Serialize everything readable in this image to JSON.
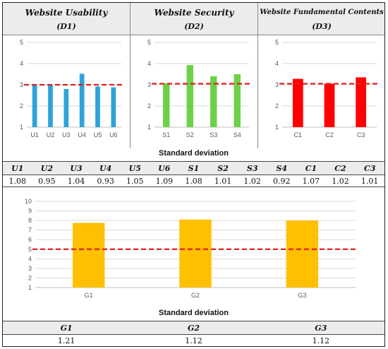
{
  "panels": [
    {
      "title": "Website Usability",
      "subtitle": "(D1)"
    },
    {
      "title": "Website Security",
      "subtitle": "(D2)"
    },
    {
      "title": "Website Fundamental Contents",
      "subtitle": "(D3)"
    }
  ],
  "chart_data": [
    {
      "type": "bar",
      "categories": [
        "U1",
        "U2",
        "U3",
        "U4",
        "U5",
        "U6"
      ],
      "values": [
        2.97,
        2.97,
        2.8,
        3.52,
        2.92,
        2.88
      ],
      "ylim": [
        1,
        5
      ],
      "yticks": [
        1,
        2,
        3,
        4,
        5
      ],
      "reference_line": 3,
      "color": "#2ea3d9",
      "grid": true
    },
    {
      "type": "bar",
      "categories": [
        "S1",
        "S2",
        "S3",
        "S4"
      ],
      "values": [
        3.07,
        3.93,
        3.4,
        3.5
      ],
      "ylim": [
        1,
        5
      ],
      "yticks": [
        1,
        2,
        3,
        4,
        5
      ],
      "reference_line": 3.05,
      "color": "#6cd146",
      "grid": true
    },
    {
      "type": "bar",
      "categories": [
        "C1",
        "C2",
        "C3"
      ],
      "values": [
        3.28,
        3.05,
        3.35
      ],
      "ylim": [
        1,
        5
      ],
      "yticks": [
        1,
        2,
        3,
        4,
        5
      ],
      "reference_line": 3.05,
      "color": "#ff0000",
      "grid": true
    },
    {
      "type": "bar",
      "categories": [
        "G1",
        "G2",
        "G3"
      ],
      "values": [
        7.75,
        8.1,
        8.0
      ],
      "ylim": [
        1,
        10
      ],
      "yticks": [
        1,
        2,
        3,
        4,
        5,
        6,
        7,
        8,
        9,
        10
      ],
      "reference_line": 5,
      "color": "#ffc000",
      "grid": true
    }
  ],
  "sd_top": {
    "caption": "Standard deviation",
    "headers": [
      "U1",
      "U2",
      "U3",
      "U4",
      "U5",
      "U6",
      "S1",
      "S2",
      "S3",
      "S4",
      "C1",
      "C2",
      "C3"
    ],
    "values": [
      "1.08",
      "0.95",
      "1.04",
      "0.93",
      "1.05",
      "1.09",
      "1.08",
      "1.01",
      "1.02",
      "0.92",
      "1.07",
      "1.02",
      "1.01"
    ]
  },
  "sd_bottom": {
    "caption": "Standard deviation",
    "headers": [
      "G1",
      "G2",
      "G3"
    ],
    "values": [
      "1.21",
      "1.12",
      "1.12"
    ]
  },
  "colors": {
    "reference_line": "#e02020",
    "grid": "#d9d9d9",
    "header_bg": "#ececec"
  }
}
